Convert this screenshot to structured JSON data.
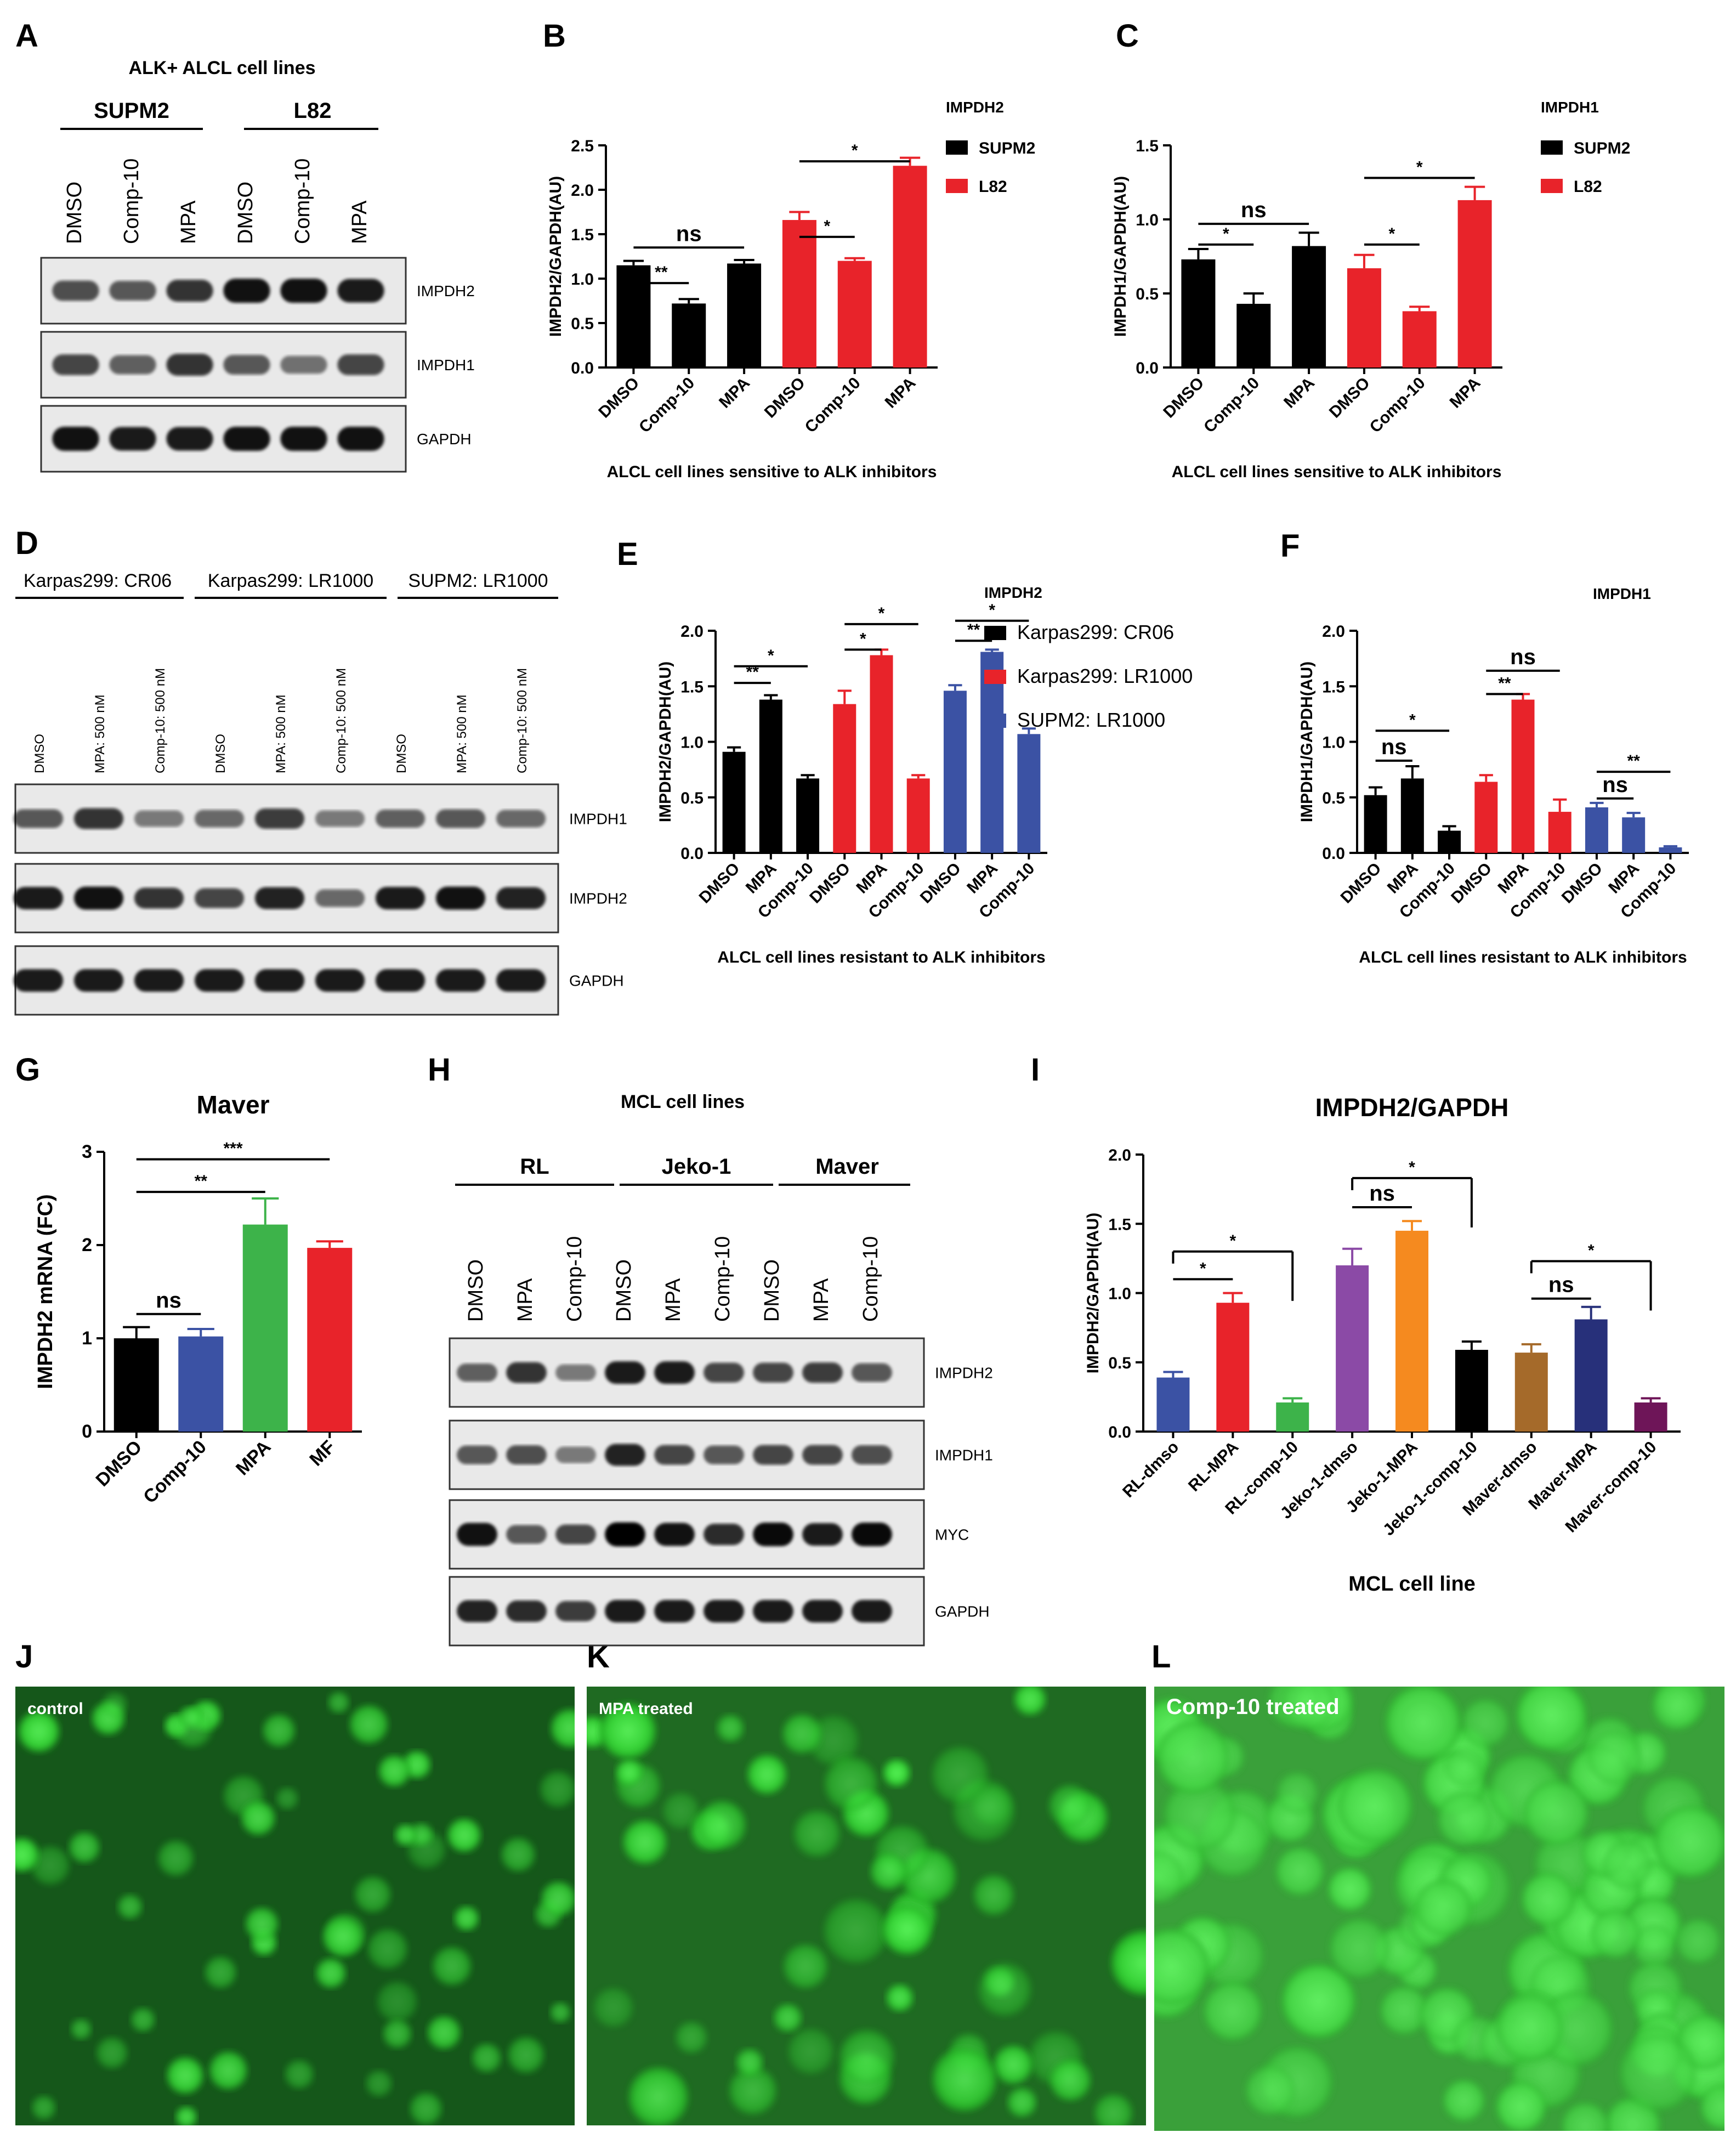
{
  "panel_labels": [
    "A",
    "B",
    "C",
    "D",
    "E",
    "F",
    "G",
    "H",
    "I",
    "J",
    "K",
    "L"
  ],
  "colors": {
    "black": "#000000",
    "red": "#e8232a",
    "blue": "#3b52a4",
    "green": "#3db34a",
    "purple": "#8b4aa6",
    "orange": "#f58a1f",
    "brown": "#a56a2a",
    "navy": "#27307a",
    "maroon": "#6e1558",
    "fluor_bg": "#2f8f2f",
    "cell": "#42e042"
  },
  "blots": {
    "A": {
      "title": "ALK+ ALCL cell lines",
      "groups": [
        "SUPM2",
        "L82"
      ],
      "lanes": [
        "DMSO",
        "Comp-10",
        "MPA",
        "DMSO",
        "Comp-10",
        "MPA"
      ],
      "bands": [
        "IMPDH2",
        "IMPDH1",
        "GAPDH"
      ]
    },
    "D": {
      "groups": [
        "Karpas299: CR06",
        "Karpas299: LR1000",
        "SUPM2: LR1000"
      ],
      "lanes": [
        "DMSO",
        "MPA: 500 nM",
        "Comp-10: 500 nM",
        "DMSO",
        "MPA: 500 nM",
        "Comp-10: 500 nM",
        "DMSO",
        "MPA: 500 nM",
        "Comp-10: 500 nM"
      ],
      "bands": [
        "IMPDH1",
        "IMPDH2",
        "GAPDH"
      ]
    },
    "H": {
      "title": "MCL cell lines",
      "groups": [
        "RL",
        "Jeko-1",
        "Maver"
      ],
      "lanes": [
        "DMSO",
        "MPA",
        "Comp-10",
        "DMSO",
        "MPA",
        "Comp-10",
        "DMSO",
        "MPA",
        "Comp-10"
      ],
      "bands": [
        "IMPDH2",
        "IMPDH1",
        "MYC",
        "GAPDH"
      ]
    }
  },
  "chart_data": [
    {
      "panel": "B",
      "type": "bar",
      "ylabel": "IMPDH2/GAPDH(AU)",
      "xlabel": "ALCL cell lines  sensitive to ALK inhibitors",
      "ylim": [
        0,
        2.5
      ],
      "yticks": [
        "0.0",
        "0.5",
        "1.0",
        "1.5",
        "2.0",
        "2.5"
      ],
      "legend_title": "IMPDH2",
      "legend": [
        {
          "name": "SUPM2",
          "color": "#000000"
        },
        {
          "name": "L82",
          "color": "#e8232a"
        }
      ],
      "categories": [
        "DMSO",
        "Comp-10",
        "MPA",
        "DMSO",
        "Comp-10",
        "MPA"
      ],
      "values": [
        1.15,
        0.72,
        1.17,
        1.66,
        1.2,
        2.27
      ],
      "errors": [
        0.05,
        0.05,
        0.04,
        0.09,
        0.03,
        0.09
      ],
      "bar_colors": [
        "#000000",
        "#000000",
        "#000000",
        "#e8232a",
        "#e8232a",
        "#e8232a"
      ],
      "sig": [
        {
          "from": 0,
          "to": 1,
          "label": "**",
          "y": 0.95
        },
        {
          "from": 0,
          "to": 2,
          "label": "ns",
          "y": 1.35
        },
        {
          "from": 3,
          "to": 4,
          "label": "*",
          "y": 1.47
        },
        {
          "from": 3,
          "to": 5,
          "label": "*",
          "y": 2.32
        }
      ]
    },
    {
      "panel": "C",
      "type": "bar",
      "ylabel": "IMPDH1/GAPDH(AU)",
      "xlabel": "ALCL cell lines  sensitive to ALK inhibitors",
      "ylim": [
        0,
        1.5
      ],
      "yticks": [
        "0.0",
        "0.5",
        "1.0",
        "1.5"
      ],
      "legend_title": "IMPDH1",
      "legend": [
        {
          "name": "SUPM2",
          "color": "#000000"
        },
        {
          "name": "L82",
          "color": "#e8232a"
        }
      ],
      "categories": [
        "DMSO",
        "Comp-10",
        "MPA",
        "DMSO",
        "Comp-10",
        "MPA"
      ],
      "values": [
        0.73,
        0.43,
        0.82,
        0.67,
        0.38,
        1.13
      ],
      "errors": [
        0.07,
        0.07,
        0.09,
        0.09,
        0.03,
        0.09
      ],
      "bar_colors": [
        "#000000",
        "#000000",
        "#000000",
        "#e8232a",
        "#e8232a",
        "#e8232a"
      ],
      "sig": [
        {
          "from": 0,
          "to": 1,
          "label": "*",
          "y": 0.83
        },
        {
          "from": 0,
          "to": 2,
          "label": "ns",
          "y": 0.97
        },
        {
          "from": 3,
          "to": 4,
          "label": "*",
          "y": 0.83
        },
        {
          "from": 3,
          "to": 5,
          "label": "*",
          "y": 1.28
        }
      ]
    },
    {
      "panel": "E",
      "type": "bar",
      "ylabel": "IMPDH2/GAPDH(AU)",
      "xlabel": "ALCL cell lines resistant to ALK inhibitors",
      "ylim": [
        0,
        2.0
      ],
      "yticks": [
        "0.0",
        "0.5",
        "1.0",
        "1.5",
        "2.0"
      ],
      "legend_title": "IMPDH2",
      "legend": [
        {
          "name": "Karpas299: CR06",
          "color": "#000000"
        },
        {
          "name": "Karpas299: LR1000",
          "color": "#e8232a"
        },
        {
          "name": "SUPM2: LR1000",
          "color": "#3b52a4"
        }
      ],
      "categories": [
        "DMSO",
        "MPA",
        "Comp-10",
        "DMSO",
        "MPA",
        "Comp-10",
        "DMSO",
        "MPA",
        "Comp-10"
      ],
      "values": [
        0.91,
        1.38,
        0.67,
        1.34,
        1.78,
        0.67,
        1.46,
        1.81,
        1.07
      ],
      "errors": [
        0.04,
        0.04,
        0.03,
        0.12,
        0.05,
        0.03,
        0.05,
        0.02,
        0.05
      ],
      "bar_colors": [
        "#000000",
        "#000000",
        "#000000",
        "#e8232a",
        "#e8232a",
        "#e8232a",
        "#3b52a4",
        "#3b52a4",
        "#3b52a4"
      ],
      "sig": [
        {
          "from": 0,
          "to": 1,
          "label": "**",
          "y": 1.53
        },
        {
          "from": 0,
          "to": 2,
          "label": "*",
          "y": 1.68
        },
        {
          "from": 3,
          "to": 4,
          "label": "*",
          "y": 1.83
        },
        {
          "from": 3,
          "to": 5,
          "label": "*",
          "y": 2.06
        },
        {
          "from": 6,
          "to": 7,
          "label": "**",
          "y": 1.91
        },
        {
          "from": 6,
          "to": 8,
          "label": "*",
          "y": 2.09
        }
      ]
    },
    {
      "panel": "F",
      "type": "bar",
      "ylabel": "IMPDH1/GAPDH(AU)",
      "xlabel": "ALCL cell lines resistant to ALK inhibitors",
      "ylim": [
        0,
        2.0
      ],
      "yticks": [
        "0.0",
        "0.5",
        "1.0",
        "1.5",
        "2.0"
      ],
      "legend_title": "IMPDH1",
      "legend": [],
      "categories": [
        "DMSO",
        "MPA",
        "Comp-10",
        "DMSO",
        "MPA",
        "Comp-10",
        "DMSO",
        "MPA",
        "Comp-10"
      ],
      "values": [
        0.52,
        0.67,
        0.2,
        0.64,
        1.38,
        0.37,
        0.41,
        0.32,
        0.05
      ],
      "errors": [
        0.07,
        0.11,
        0.04,
        0.06,
        0.05,
        0.11,
        0.04,
        0.04,
        0.01
      ],
      "bar_colors": [
        "#000000",
        "#000000",
        "#000000",
        "#e8232a",
        "#e8232a",
        "#e8232a",
        "#3b52a4",
        "#3b52a4",
        "#3b52a4"
      ],
      "sig": [
        {
          "from": 0,
          "to": 1,
          "label": "ns",
          "y": 0.83
        },
        {
          "from": 0,
          "to": 2,
          "label": "*",
          "y": 1.1
        },
        {
          "from": 3,
          "to": 4,
          "label": "**",
          "y": 1.43
        },
        {
          "from": 3,
          "to": 5,
          "label": "ns",
          "y": 1.64
        },
        {
          "from": 6,
          "to": 7,
          "label": "ns",
          "y": 0.49
        },
        {
          "from": 6,
          "to": 8,
          "label": "**",
          "y": 0.73
        }
      ]
    },
    {
      "panel": "G",
      "type": "bar",
      "title": "Maver",
      "ylabel": "IMPDH2  mRNA (FC)",
      "xlabel": "",
      "ylim": [
        0,
        3
      ],
      "yticks": [
        "0",
        "1",
        "2",
        "3"
      ],
      "categories": [
        "DMSO",
        "Comp-10",
        "MPA",
        "MF"
      ],
      "values": [
        1.0,
        1.02,
        2.22,
        1.97
      ],
      "errors": [
        0.12,
        0.08,
        0.28,
        0.07
      ],
      "bar_colors": [
        "#000000",
        "#3b52a4",
        "#3db34a",
        "#e8232a"
      ],
      "sig": [
        {
          "from": 0,
          "to": 1,
          "label": "ns",
          "y": 1.26
        },
        {
          "from": 0,
          "to": 2,
          "label": "**",
          "y": 2.57
        },
        {
          "from": 0,
          "to": 3,
          "label": "***",
          "y": 2.92
        }
      ]
    },
    {
      "panel": "I",
      "type": "bar",
      "title": "IMPDH2/GAPDH",
      "ylabel": "IMPDH2/GAPDH(AU)",
      "xlabel": "MCL cell line",
      "ylim": [
        0,
        2.0
      ],
      "yticks": [
        "0.0",
        "0.5",
        "1.0",
        "1.5",
        "2.0"
      ],
      "categories": [
        "RL-dmso",
        "RL-MPA",
        "RL-comp-10",
        "Jeko-1-dmso",
        "Jeko-1-MPA",
        "Jeko-1-comp-10",
        "Maver-dmso",
        "Maver-MPA",
        "Maver-comp-10"
      ],
      "values": [
        0.39,
        0.93,
        0.21,
        1.2,
        1.45,
        0.59,
        0.57,
        0.81,
        0.21
      ],
      "errors": [
        0.04,
        0.07,
        0.03,
        0.12,
        0.07,
        0.06,
        0.06,
        0.09,
        0.03
      ],
      "bar_colors": [
        "#3b52a4",
        "#e8232a",
        "#3db34a",
        "#8b4aa6",
        "#f58a1f",
        "#000000",
        "#a56a2a",
        "#27307a",
        "#6e1558"
      ],
      "sig": [
        {
          "from": 0,
          "to": 1,
          "label": "*",
          "y": 1.1,
          "bracket": false
        },
        {
          "from": 0,
          "to": 2,
          "label": "*",
          "y": 1.3,
          "bracket": true
        },
        {
          "from": 3,
          "to": 4,
          "label": "ns",
          "y": 1.62,
          "bracket": false
        },
        {
          "from": 3,
          "to": 5,
          "label": "*",
          "y": 1.83,
          "bracket": true
        },
        {
          "from": 6,
          "to": 7,
          "label": "ns",
          "y": 0.96,
          "bracket": false
        },
        {
          "from": 6,
          "to": 8,
          "label": "*",
          "y": 1.23,
          "bracket": true
        }
      ]
    }
  ],
  "micrographs": [
    {
      "panel": "J",
      "label": "control"
    },
    {
      "panel": "K",
      "label": "MPA treated"
    },
    {
      "panel": "L",
      "label": "Comp-10 treated"
    }
  ]
}
